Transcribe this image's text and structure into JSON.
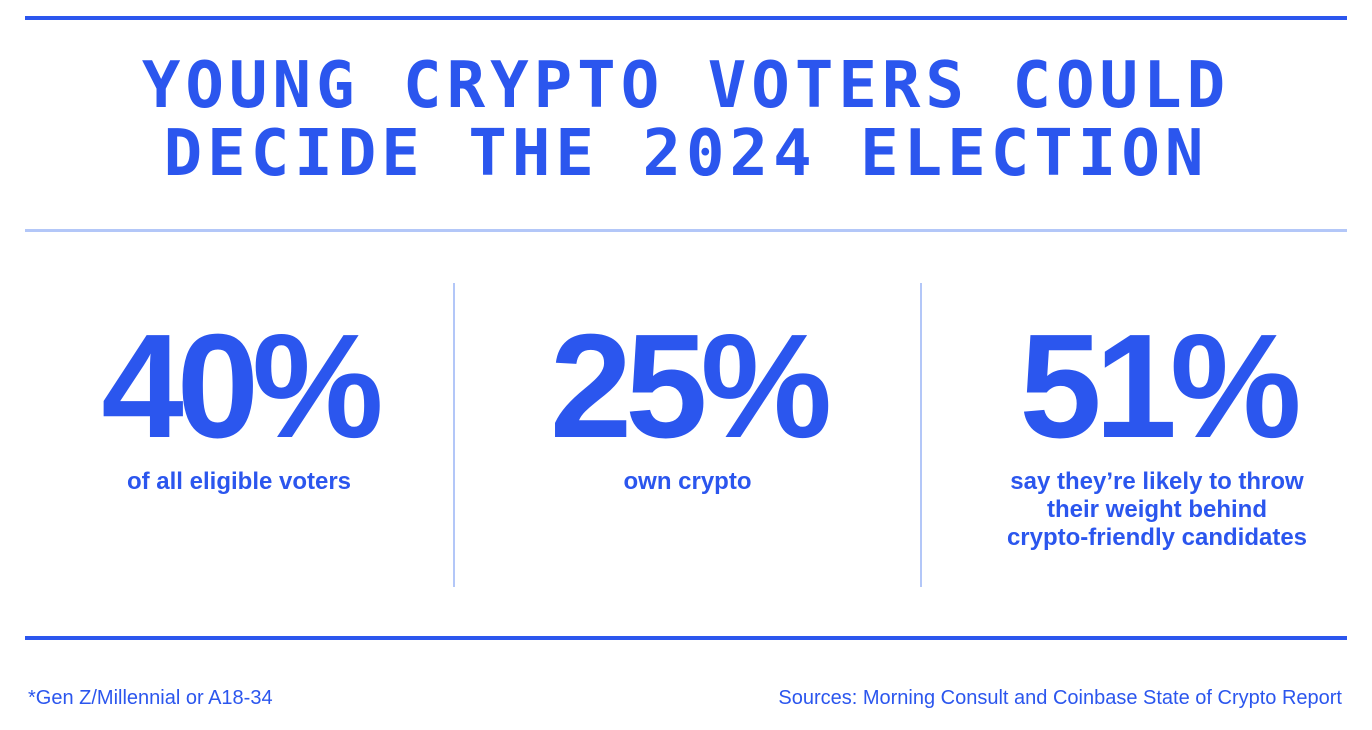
{
  "headline": {
    "line1": "YOUNG CRYPTO VOTERS COULD",
    "line2": "DECIDE THE 2024 ELECTION"
  },
  "stats": [
    {
      "value": "40%",
      "description": "of all eligible voters"
    },
    {
      "value": "25%",
      "description": "own crypto"
    },
    {
      "value": "51%",
      "description": "say they’re likely to throw\ntheir weight behind\ncrypto-friendly candidates"
    }
  ],
  "footer": {
    "footnote": "*Gen Z/Millennial or A18-34",
    "sources": "Sources: Morning Consult and Coinbase State of Crypto Report"
  },
  "colors": {
    "accent": "#2b56ee",
    "divider_light": "#b3c7f8",
    "background": "#ffffff"
  }
}
